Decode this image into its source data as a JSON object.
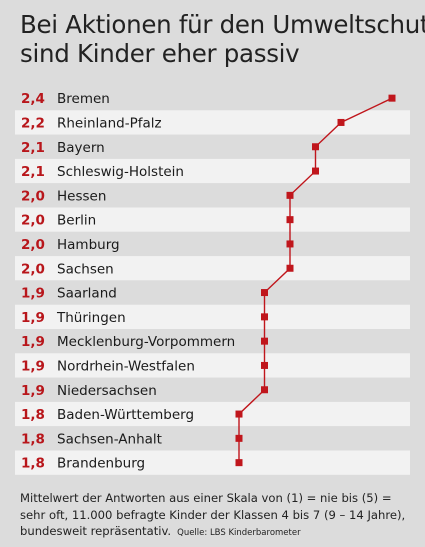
{
  "title_line1": "Bei Aktionen für den Umweltschutz",
  "title_line2": "sind Kinder eher passiv",
  "chart_data": {
    "type": "line",
    "orientation": "horizontal-dot-plot",
    "categories": [
      "Bremen",
      "Rheinland-Pfalz",
      "Bayern",
      "Schleswig-Holstein",
      "Hessen",
      "Berlin",
      "Hamburg",
      "Sachsen",
      "Saarland",
      "Thüringen",
      "Mecklenburg-Vorpommern",
      "Nordrhein-Westfalen",
      "Niedersachsen",
      "Baden-Württemberg",
      "Sachsen-Anhalt",
      "Brandenburg"
    ],
    "value_labels": [
      "2,4",
      "2,2",
      "2,1",
      "2,1",
      "2,0",
      "2,0",
      "2,0",
      "2,0",
      "1,9",
      "1,9",
      "1,9",
      "1,9",
      "1,9",
      "1,8",
      "1,8",
      "1,8"
    ],
    "values": [
      2.4,
      2.2,
      2.1,
      2.1,
      2.0,
      2.0,
      2.0,
      2.0,
      1.9,
      1.9,
      1.9,
      1.9,
      1.9,
      1.8,
      1.8,
      1.8
    ],
    "series_color": "#c0161c",
    "label_color": "#b8161b",
    "row_colors": [
      "#dcdcdc",
      "#f2f2f2"
    ]
  },
  "note_line1": "Mittelwert der Antworten aus einer Skala von (1) = nie bis (5) =",
  "note_line2": "sehr oft, 11.000 befragte Kinder der Klassen 4 bis 7 (9 – 14 Jahre),",
  "note_line3": "bundesweit repräsentativ.",
  "source": "Quelle: LBS Kinderbarometer"
}
